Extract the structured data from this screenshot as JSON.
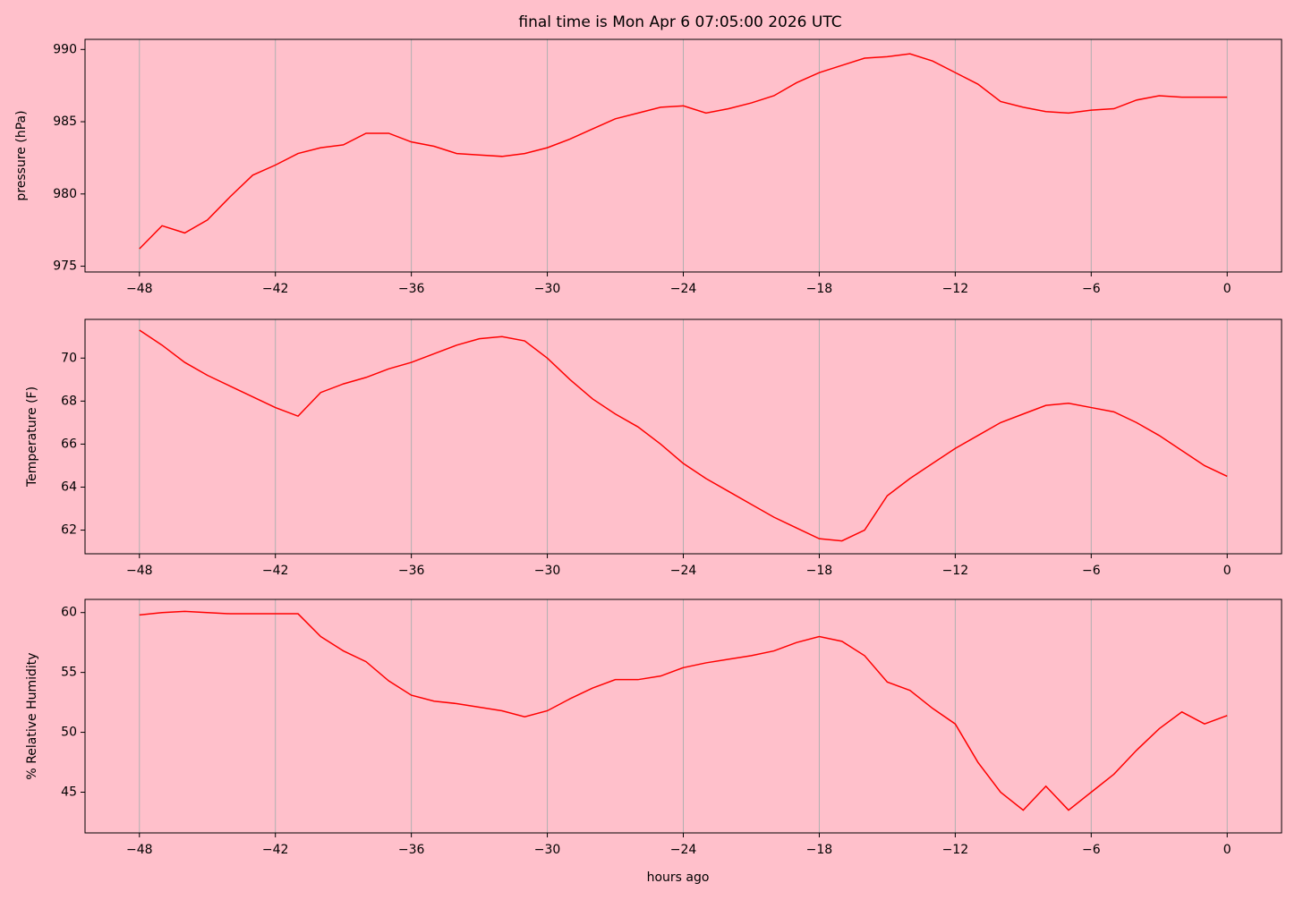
{
  "chart_data": [
    {
      "type": "line",
      "title": "final time is Mon Apr  6 07:05:00 2026  UTC",
      "ylabel": "pressure (hPa)",
      "grid": "x",
      "x": [
        -48,
        -47,
        -46,
        -45,
        -44,
        -43,
        -42,
        -41,
        -40,
        -39,
        -38,
        -37,
        -36,
        -35,
        -34,
        -33,
        -32,
        -31,
        -30,
        -29,
        -28,
        -27,
        -26,
        -25,
        -24,
        -23,
        -22,
        -21,
        -20,
        -19,
        -18,
        -17,
        -16,
        -15,
        -14,
        -13,
        -12,
        -11,
        -10,
        -9,
        -8,
        -7,
        -6,
        -5,
        -4,
        -3,
        -2,
        -1,
        0
      ],
      "series": [
        {
          "color": "#ff0000",
          "values": [
            976.2,
            977.8,
            977.3,
            978.2,
            979.8,
            981.3,
            982.0,
            982.8,
            983.2,
            983.4,
            984.2,
            984.2,
            983.6,
            983.3,
            982.8,
            982.7,
            982.6,
            982.8,
            983.2,
            983.8,
            984.5,
            985.2,
            985.6,
            986.0,
            986.1,
            985.6,
            985.9,
            986.3,
            986.8,
            987.7,
            988.4,
            988.9,
            989.4,
            989.5,
            989.7,
            989.2,
            988.4,
            987.6,
            986.4,
            986.0,
            985.7,
            985.6,
            985.8,
            985.9,
            986.5,
            986.8,
            986.7,
            986.7,
            986.7
          ]
        }
      ],
      "xlim": [
        -50.4,
        2.4
      ],
      "ylim": [
        974.6,
        990.7
      ],
      "xticks": [
        {
          "value": -48,
          "label": "−48"
        },
        {
          "value": -42,
          "label": "−42"
        },
        {
          "value": -36,
          "label": "−36"
        },
        {
          "value": -30,
          "label": "−30"
        },
        {
          "value": -24,
          "label": "−24"
        },
        {
          "value": -18,
          "label": "−18"
        },
        {
          "value": -12,
          "label": "−12"
        },
        {
          "value": -6,
          "label": "−6"
        },
        0
      ],
      "yticks": [
        975,
        980,
        985,
        990
      ]
    },
    {
      "type": "line",
      "ylabel": "Temperature (F)",
      "grid": "x",
      "x": [
        -48,
        -47,
        -46,
        -45,
        -44,
        -43,
        -42,
        -41,
        -40,
        -39,
        -38,
        -37,
        -36,
        -35,
        -34,
        -33,
        -32,
        -31,
        -30,
        -29,
        -28,
        -27,
        -26,
        -25,
        -24,
        -23,
        -22,
        -21,
        -20,
        -19,
        -18,
        -17,
        -16,
        -15,
        -14,
        -13,
        -12,
        -11,
        -10,
        -9,
        -8,
        -7,
        -6,
        -5,
        -4,
        -3,
        -2,
        -1,
        0
      ],
      "series": [
        {
          "color": "#ff0000",
          "values": [
            71.3,
            70.6,
            69.8,
            69.2,
            68.7,
            68.2,
            67.7,
            67.3,
            68.4,
            68.8,
            69.1,
            69.5,
            69.8,
            70.2,
            70.6,
            70.9,
            71.0,
            70.8,
            70.0,
            69.0,
            68.1,
            67.4,
            66.8,
            66.0,
            65.1,
            64.4,
            63.8,
            63.2,
            62.6,
            62.1,
            61.6,
            61.5,
            62.0,
            63.6,
            64.4,
            65.1,
            65.8,
            66.4,
            67.0,
            67.4,
            67.8,
            67.9,
            67.7,
            67.5,
            67.0,
            66.4,
            65.7,
            65.0,
            64.5
          ]
        }
      ],
      "xlim": [
        -50.4,
        2.4
      ],
      "ylim": [
        60.9,
        71.8
      ],
      "xticks": [
        {
          "value": -48,
          "label": "−48"
        },
        {
          "value": -42,
          "label": "−42"
        },
        {
          "value": -36,
          "label": "−36"
        },
        {
          "value": -30,
          "label": "−30"
        },
        {
          "value": -24,
          "label": "−24"
        },
        {
          "value": -18,
          "label": "−18"
        },
        {
          "value": -12,
          "label": "−12"
        },
        {
          "value": -6,
          "label": "−6"
        },
        0
      ],
      "yticks": [
        62,
        64,
        66,
        68,
        70
      ]
    },
    {
      "type": "line",
      "ylabel": "% Relative Humidity",
      "xlabel": "hours ago",
      "grid": "x",
      "x": [
        -48,
        -47,
        -46,
        -45,
        -44,
        -43,
        -42,
        -41,
        -40,
        -39,
        -38,
        -37,
        -36,
        -35,
        -34,
        -33,
        -32,
        -31,
        -30,
        -29,
        -28,
        -27,
        -26,
        -25,
        -24,
        -23,
        -22,
        -21,
        -20,
        -19,
        -18,
        -17,
        -16,
        -15,
        -14,
        -13,
        -12,
        -11,
        -10,
        -9,
        -8,
        -7,
        -6,
        -5,
        -4,
        -3,
        -2,
        -1,
        0
      ],
      "series": [
        {
          "color": "#ff0000",
          "values": [
            59.8,
            60.0,
            60.1,
            60.0,
            59.9,
            59.9,
            59.9,
            59.9,
            58.0,
            56.8,
            55.9,
            54.3,
            53.1,
            52.6,
            52.4,
            52.1,
            51.8,
            51.3,
            51.8,
            52.8,
            53.7,
            54.4,
            54.4,
            54.7,
            55.4,
            55.8,
            56.1,
            56.4,
            56.8,
            57.5,
            58.0,
            57.6,
            56.4,
            54.2,
            53.5,
            52.0,
            50.7,
            47.5,
            45.0,
            43.5,
            45.5,
            43.5,
            45.0,
            46.5,
            48.5,
            50.3,
            51.7,
            50.7,
            51.4
          ]
        }
      ],
      "xlim": [
        -50.4,
        2.4
      ],
      "ylim": [
        41.6,
        61.1
      ],
      "xticks": [
        {
          "value": -48,
          "label": "−48"
        },
        {
          "value": -42,
          "label": "−42"
        },
        {
          "value": -36,
          "label": "−36"
        },
        {
          "value": -30,
          "label": "−30"
        },
        {
          "value": -24,
          "label": "−24"
        },
        {
          "value": -18,
          "label": "−18"
        },
        {
          "value": -12,
          "label": "−12"
        },
        {
          "value": -6,
          "label": "−6"
        },
        0
      ],
      "yticks": [
        45,
        50,
        55,
        60
      ]
    }
  ]
}
